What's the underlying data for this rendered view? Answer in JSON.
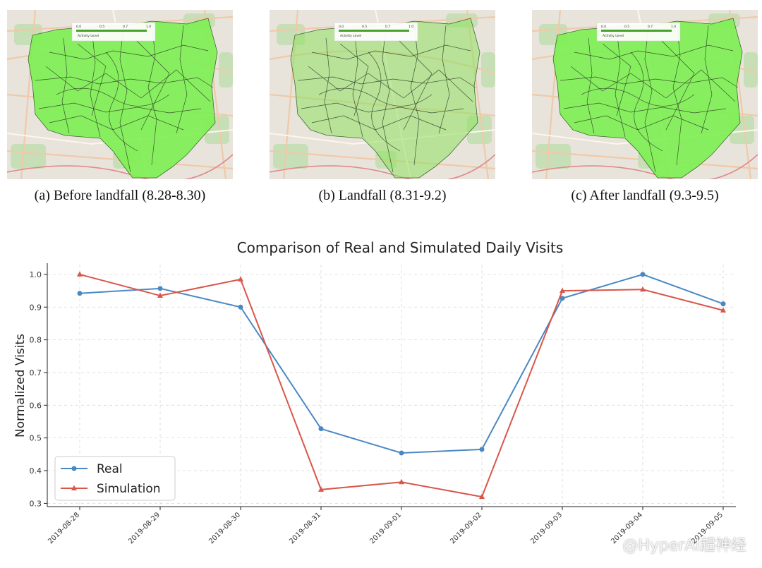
{
  "maps": [
    {
      "caption": "(a) Before landfall (8.28-8.30)",
      "legend_title": "Activity Level",
      "legend_ticks": [
        "0.0",
        "0.5",
        "0.7",
        "1.0"
      ],
      "fill": "#7cf051",
      "opacity": 0.9
    },
    {
      "caption": "(b) Landfall (8.31-9.2)",
      "legend_title": "Activity Level",
      "legend_ticks": [
        "0.0",
        "0.5",
        "0.7",
        "1.0"
      ],
      "fill": "#8ee05e",
      "opacity": 0.55
    },
    {
      "caption": "(c) After landfall (9.3-9.5)",
      "legend_title": "Activity Level",
      "legend_ticks": [
        "0.0",
        "0.5",
        "0.7",
        "1.0"
      ],
      "fill": "#7cf051",
      "opacity": 0.9
    }
  ],
  "chart_data": {
    "type": "line",
    "title": "Comparison of Real and Simulated Daily Visits",
    "xlabel": "",
    "ylabel": "Normalized Visits",
    "categories": [
      "2019-08-28",
      "2019-08-29",
      "2019-08-30",
      "2019-08-31",
      "2019-09-01",
      "2019-09-02",
      "2019-09-03",
      "2019-09-04",
      "2019-09-05"
    ],
    "yticks": [
      "0.3",
      "0.4",
      "0.5",
      "0.6",
      "0.7",
      "0.8",
      "0.9",
      "1.0"
    ],
    "ylim": [
      0.29,
      1.03
    ],
    "grid": true,
    "legend_position": "lower-left",
    "series": [
      {
        "name": "Real",
        "color": "#4a88c4",
        "marker": "circle",
        "values": [
          0.942,
          0.957,
          0.9,
          0.528,
          0.454,
          0.465,
          0.927,
          1.0,
          0.91
        ]
      },
      {
        "name": "Simulation",
        "color": "#d9564a",
        "marker": "triangle",
        "values": [
          1.0,
          0.935,
          0.985,
          0.342,
          0.365,
          0.32,
          0.95,
          0.954,
          0.89
        ]
      }
    ]
  },
  "watermark": "@HyperAI超神经"
}
